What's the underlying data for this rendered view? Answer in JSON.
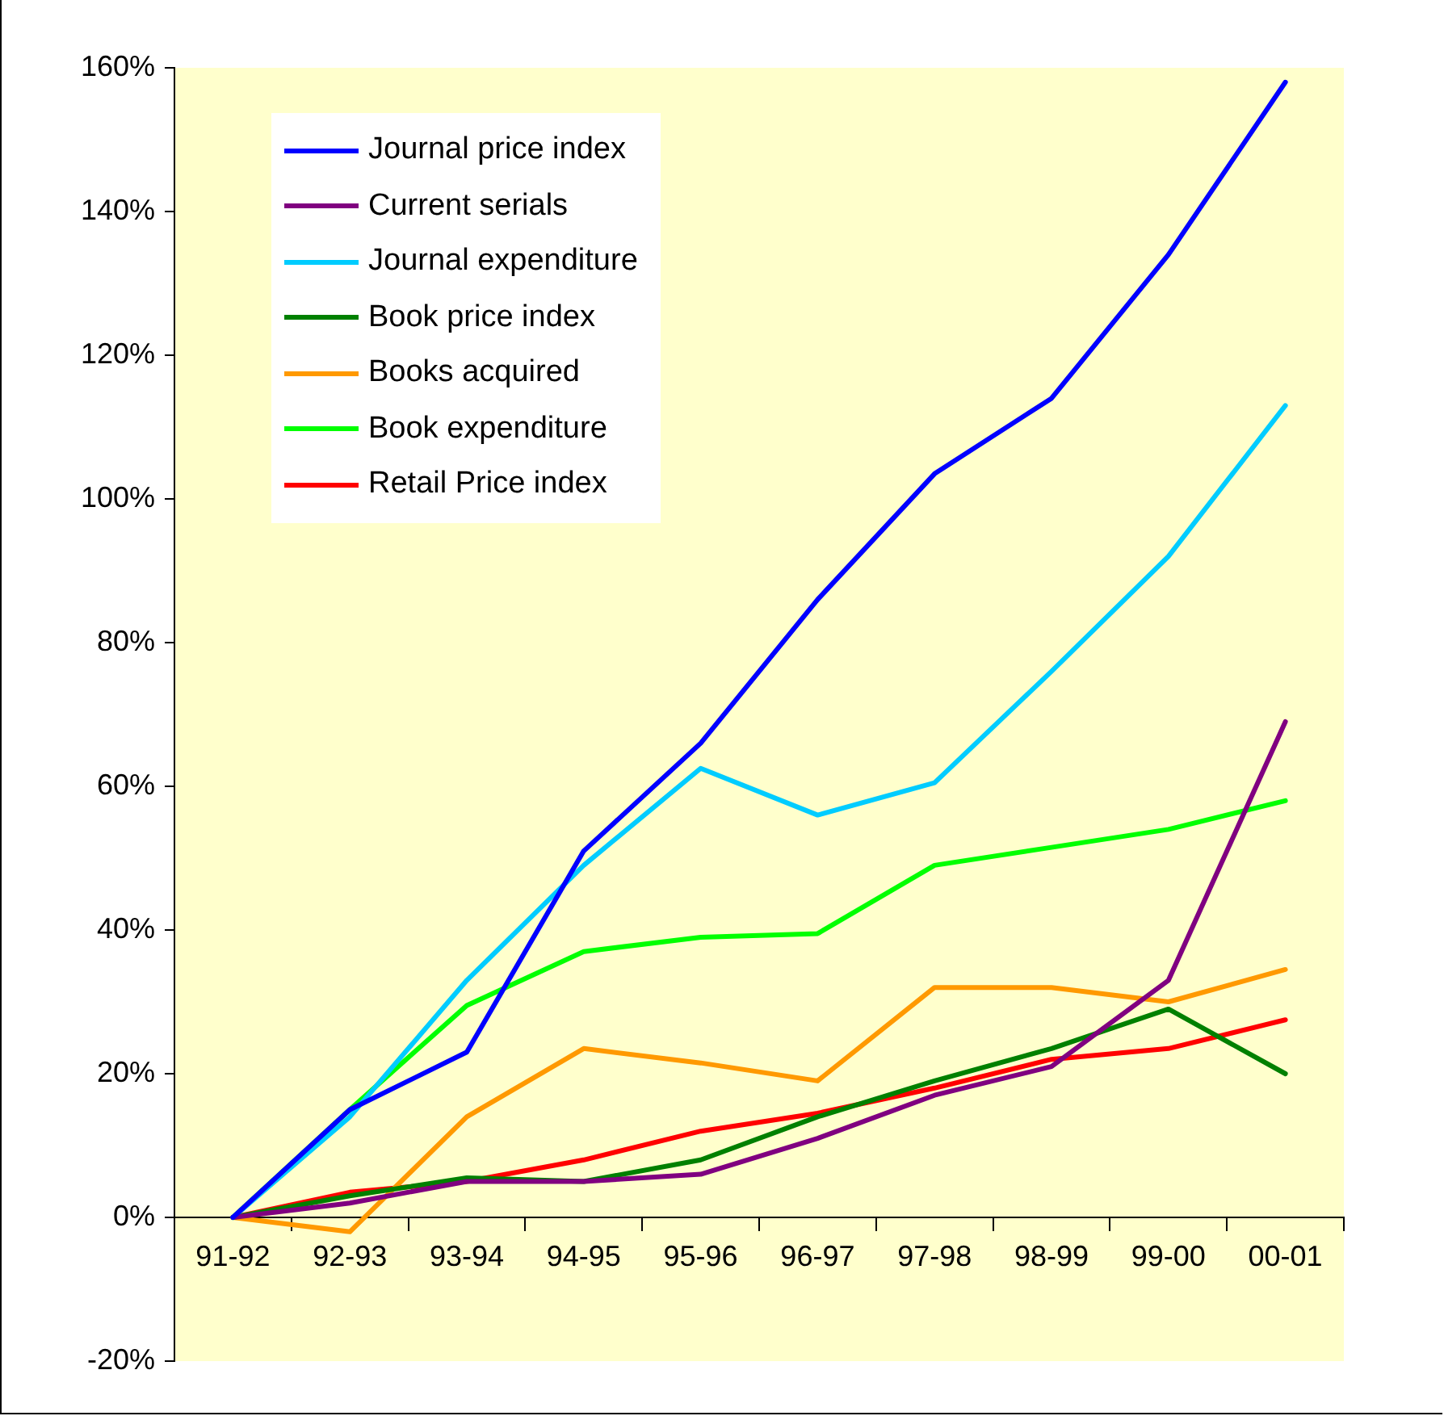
{
  "chart_data": {
    "type": "line",
    "categories": [
      "91-92",
      "92-93",
      "93-94",
      "94-95",
      "95-96",
      "96-97",
      "97-98",
      "98-99",
      "99-00",
      "00-01"
    ],
    "series": [
      {
        "name": "Journal price index",
        "color": "#0000ff",
        "values": [
          0,
          15,
          23,
          51,
          66,
          86,
          103.5,
          114,
          134,
          158
        ]
      },
      {
        "name": "Current serials",
        "color": "#800080",
        "values": [
          0,
          2,
          5,
          5,
          6,
          11,
          17,
          21,
          33,
          69
        ]
      },
      {
        "name": "Journal expenditure",
        "color": "#00ccff",
        "values": [
          0,
          14,
          33,
          49,
          62.5,
          56,
          60.5,
          76,
          92,
          113
        ]
      },
      {
        "name": "Book price index",
        "color": "#008000",
        "values": [
          0,
          3,
          5.5,
          5,
          8,
          14,
          19,
          23.5,
          29,
          20
        ]
      },
      {
        "name": "Books acquired",
        "color": "#ff9900",
        "values": [
          0,
          -2,
          14,
          23.5,
          21.5,
          19,
          32,
          32,
          30,
          34.5
        ]
      },
      {
        "name": "Book expenditure",
        "color": "#00ff00",
        "values": [
          0,
          15,
          29.5,
          37,
          39,
          39.5,
          49,
          51.5,
          54,
          58
        ]
      },
      {
        "name": "Retail Price index",
        "color": "#ff0000",
        "values": [
          0,
          3.5,
          5,
          8,
          12,
          14.5,
          18,
          22,
          23.5,
          27.5
        ]
      }
    ],
    "ylim": [
      -20,
      160
    ],
    "yticks": [
      {
        "value": -20,
        "label": "-20%"
      },
      {
        "value": 0,
        "label": "0%"
      },
      {
        "value": 20,
        "label": "20%"
      },
      {
        "value": 40,
        "label": "40%"
      },
      {
        "value": 60,
        "label": "60%"
      },
      {
        "value": 80,
        "label": "80%"
      },
      {
        "value": 100,
        "label": "100%"
      },
      {
        "value": 120,
        "label": "120%"
      },
      {
        "value": 140,
        "label": "140%"
      },
      {
        "value": 160,
        "label": "160%"
      }
    ],
    "grid": false,
    "legend": "top left",
    "marker": "none",
    "line_style": "solid"
  }
}
